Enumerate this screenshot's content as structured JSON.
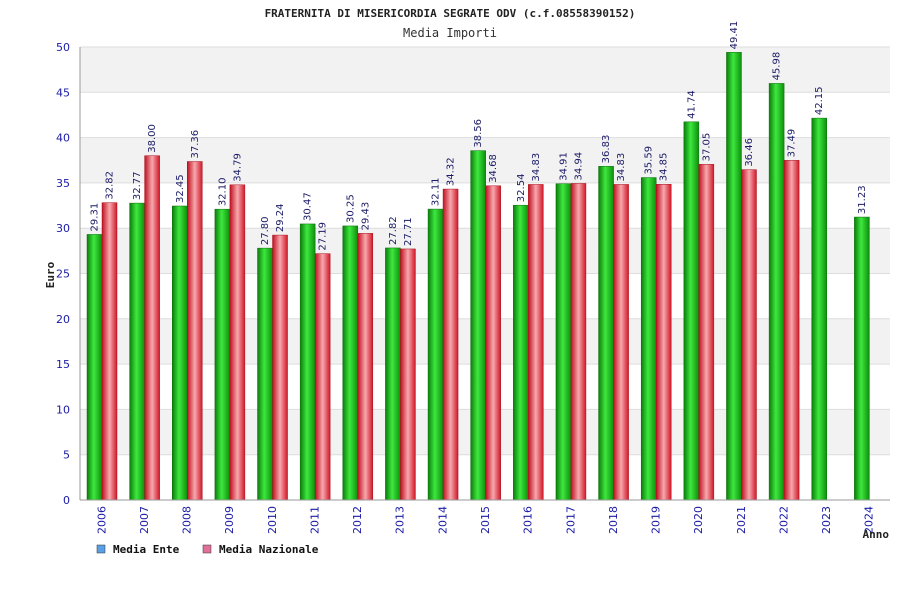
{
  "chart_data": {
    "type": "bar",
    "title": "FRATERNITA DI MISERICORDIA SEGRATE ODV (c.f.08558390152)",
    "subtitle": "Media Importi",
    "xlabel": "Anno",
    "ylabel": "Euro",
    "ylim": [
      0,
      50
    ],
    "yticks": [
      0,
      5,
      10,
      15,
      20,
      25,
      30,
      35,
      40,
      45,
      50
    ],
    "grid": true,
    "legend_position": "bottom-left",
    "categories": [
      "2006",
      "2007",
      "2008",
      "2009",
      "2010",
      "2011",
      "2012",
      "2013",
      "2014",
      "2015",
      "2016",
      "2017",
      "2018",
      "2019",
      "2020",
      "2021",
      "2022",
      "2023",
      "2024"
    ],
    "series": [
      {
        "name": "Media Ente",
        "color": "#1db31d",
        "legend_color": "#5aa0e6",
        "values": [
          29.31,
          32.77,
          32.45,
          32.1,
          27.8,
          30.47,
          30.25,
          27.82,
          32.11,
          38.56,
          32.54,
          34.91,
          36.83,
          35.59,
          41.74,
          49.41,
          45.98,
          42.15,
          31.23
        ],
        "labels": [
          "29.31",
          "32.77",
          "32.45",
          "32.10",
          "27.80",
          "30.47",
          "30.25",
          "27.82",
          "32.11",
          "38.56",
          "32.54",
          "34.91",
          "36.83",
          "35.59",
          "41.74",
          "49.41",
          "45.98",
          "42.15",
          "31.23"
        ]
      },
      {
        "name": "Media Nazionale",
        "color": "#e0303a",
        "legend_color": "#e0709a",
        "values": [
          32.82,
          38.0,
          37.36,
          34.79,
          29.24,
          27.19,
          29.43,
          27.71,
          34.32,
          34.68,
          34.83,
          34.94,
          34.83,
          34.85,
          37.05,
          36.46,
          37.49,
          null,
          null
        ],
        "labels": [
          "32.82",
          "38.00",
          "37.36",
          "34.79",
          "29.24",
          "27.19",
          "29.43",
          "27.71",
          "34.32",
          "34.68",
          "34.83",
          "34.94",
          "34.83",
          "34.85",
          "37.05",
          "36.46",
          "37.49",
          null,
          null
        ]
      }
    ]
  }
}
